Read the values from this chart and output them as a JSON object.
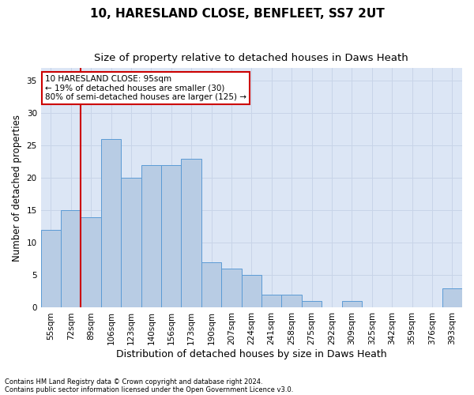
{
  "title1": "10, HARESLAND CLOSE, BENFLEET, SS7 2UT",
  "title2": "Size of property relative to detached houses in Daws Heath",
  "xlabel": "Distribution of detached houses by size in Daws Heath",
  "ylabel": "Number of detached properties",
  "footnote1": "Contains HM Land Registry data © Crown copyright and database right 2024.",
  "footnote2": "Contains public sector information licensed under the Open Government Licence v3.0.",
  "bins": [
    "55sqm",
    "72sqm",
    "89sqm",
    "106sqm",
    "123sqm",
    "140sqm",
    "156sqm",
    "173sqm",
    "190sqm",
    "207sqm",
    "224sqm",
    "241sqm",
    "258sqm",
    "275sqm",
    "292sqm",
    "309sqm",
    "325sqm",
    "342sqm",
    "359sqm",
    "376sqm",
    "393sqm"
  ],
  "values": [
    12,
    15,
    14,
    26,
    20,
    22,
    22,
    23,
    7,
    6,
    5,
    2,
    2,
    1,
    0,
    1,
    0,
    0,
    0,
    0,
    3
  ],
  "bar_color": "#b8cce4",
  "bar_edge_color": "#5b9bd5",
  "grid_color": "#c8d4e8",
  "vline_x": 2,
  "vline_color": "#cc0000",
  "annotation_text": "10 HARESLAND CLOSE: 95sqm\n← 19% of detached houses are smaller (30)\n80% of semi-detached houses are larger (125) →",
  "annotation_box_color": "white",
  "annotation_box_edge": "#cc0000",
  "ylim": [
    0,
    37
  ],
  "yticks": [
    0,
    5,
    10,
    15,
    20,
    25,
    30,
    35
  ],
  "background_color": "#dce6f5",
  "fig_background": "white",
  "title1_fontsize": 11,
  "title2_fontsize": 9.5,
  "xlabel_fontsize": 9,
  "ylabel_fontsize": 8.5,
  "tick_fontsize": 7.5,
  "annot_fontsize": 7.5,
  "footnote_fontsize": 6
}
